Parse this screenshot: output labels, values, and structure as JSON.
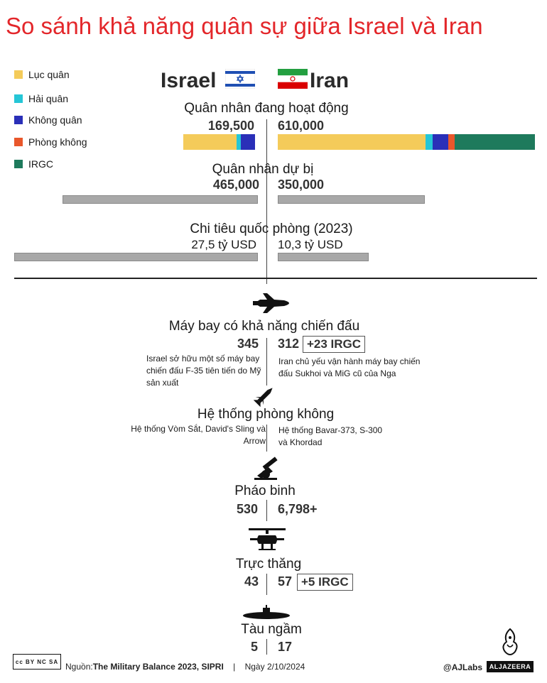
{
  "title": "So sánh khả năng quân sự giữa Israel và Iran",
  "legend": [
    {
      "label": "Lục quân",
      "color": "#f4cb5a"
    },
    {
      "label": "Hải quân",
      "color": "#25c6d6"
    },
    {
      "label": "Không quân",
      "color": "#2a2fb8"
    },
    {
      "label": "Phòng không",
      "color": "#e9572b"
    },
    {
      "label": "IRGC",
      "color": "#1e7a5c"
    }
  ],
  "countries": {
    "left": "Israel",
    "right": "Iran"
  },
  "chart_data": [
    {
      "type": "bar",
      "title": "Quân nhân đang hoạt động",
      "stacked": true,
      "israel_label": "169,500",
      "iran_label": "610,000",
      "israel": {
        "Lục quân": 126000,
        "Hải quân": 9500,
        "Không quân": 34000
      },
      "iran": {
        "Lục quân": 350000,
        "Hải quân": 18000,
        "Không quân": 37000,
        "Phòng không": 15000,
        "IRGC": 190000
      }
    },
    {
      "type": "bar",
      "title": "Quân nhân dự bị",
      "israel_label": "465,000",
      "iran_label": "350,000",
      "israel": 465000,
      "iran": 350000
    },
    {
      "type": "bar",
      "title": "Chi tiêu quốc phòng (2023)",
      "israel_label": "27,5 tỷ USD",
      "iran_label": "10,3 tỷ USD",
      "israel": 27.5,
      "iran": 10.3
    },
    {
      "type": "table",
      "rows": [
        {
          "icon": "fighter-jet-icon",
          "title": "Máy bay có khả năng chiến đấu",
          "israel": "345",
          "iran": "312",
          "iran_extra": "+23 IRGC",
          "israel_note": "Israel sở hữu một số máy bay chiến đấu F-35 tiên tiến do Mỹ sản xuất",
          "iran_note": "Iran chủ yếu vận hành máy bay chiến đấu Sukhoi và MiG cũ của Nga"
        },
        {
          "icon": "missile-icon",
          "title": "Hệ thống phòng không",
          "israel_note": "Hệ thống Vòm Sắt, David's Sling và Arrow",
          "iran_note": "Hệ thống Bavar-373, S-300 và Khordad"
        },
        {
          "icon": "artillery-icon",
          "title": "Pháo binh",
          "israel": "530",
          "iran": "6,798+"
        },
        {
          "icon": "helicopter-icon",
          "title": "Trực thăng",
          "israel": "43",
          "iran": "57",
          "iran_extra": "+5 IRGC"
        },
        {
          "icon": "submarine-icon",
          "title": "Tàu ngầm",
          "israel": "5",
          "iran": "17"
        }
      ]
    }
  ],
  "footer": {
    "source_label": "Nguồn:",
    "source": "The Military Balance 2023, SIPRI",
    "separator": "|",
    "date": "Ngày 2/10/2024",
    "credit": "@AJLabs",
    "brand": "ALJAZEERA",
    "license_text": "cc BY NC SA"
  }
}
